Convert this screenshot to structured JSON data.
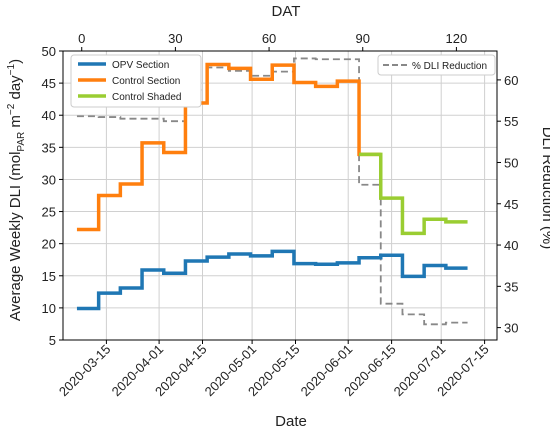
{
  "chart_data": {
    "type": "line",
    "xlabel": "Date",
    "x2label": "DAT",
    "ylabel": "Average Weekly DLI (mol_PAR m^-2 day^-1)",
    "ylabel_parts": [
      "Average Weekly DLI (mol",
      "PAR",
      " m",
      "−2",
      " day",
      "−1",
      ")"
    ],
    "y2label": "DLI Reduction (%)",
    "x_ticks": [
      "2020-03-15",
      "2020-04-01",
      "2020-04-15",
      "2020-05-01",
      "2020-05-15",
      "2020-06-01",
      "2020-06-15",
      "2020-07-01",
      "2020-07-15"
    ],
    "x2_ticks": [
      "0",
      "30",
      "60",
      "90",
      "120"
    ],
    "y_ticks": [
      "5",
      "10",
      "15",
      "20",
      "25",
      "30",
      "35",
      "40",
      "45",
      "50"
    ],
    "y2_ticks": [
      "30",
      "35",
      "40",
      "45",
      "50",
      "55",
      "60"
    ],
    "xlim": [
      "2020-03-01",
      "2020-07-19"
    ],
    "ylim": [
      5,
      50
    ],
    "y2lim": [
      28.5,
      63.5
    ],
    "x2lim": [
      -6,
      133
    ],
    "grid": true,
    "legend_left": {
      "placement": "top-left",
      "entries": [
        "OPV Section",
        "Control Section",
        "Control Shaded"
      ]
    },
    "legend_right": {
      "placement": "top-right",
      "entries": [
        "% DLI Reduction"
      ]
    },
    "colors": {
      "OPV Section": "#1f77b4",
      "Control Section": "#ff7f0e",
      "Control Shaded": "#9acd32",
      "% DLI Reduction": "#888888"
    },
    "series": [
      {
        "name": "OPV Section",
        "axis": "left",
        "style": "steps-mid",
        "dash": false,
        "x": [
          "2020-03-09",
          "2020-03-16",
          "2020-03-23",
          "2020-03-30",
          "2020-04-06",
          "2020-04-13",
          "2020-04-20",
          "2020-04-27",
          "2020-05-04",
          "2020-05-11",
          "2020-05-18",
          "2020-05-25",
          "2020-06-01",
          "2020-06-08",
          "2020-06-15",
          "2020-06-22",
          "2020-06-29",
          "2020-07-06"
        ],
        "values": [
          9.9,
          12.3,
          13.1,
          15.9,
          15.4,
          17.3,
          17.9,
          18.4,
          18.1,
          18.8,
          16.9,
          16.8,
          17.0,
          17.8,
          18.2,
          14.9,
          16.6,
          16.2
        ]
      },
      {
        "name": "Control Section",
        "axis": "left",
        "style": "steps-mid",
        "dash": false,
        "x": [
          "2020-03-09",
          "2020-03-16",
          "2020-03-23",
          "2020-03-30",
          "2020-04-06",
          "2020-04-13",
          "2020-04-20",
          "2020-04-27",
          "2020-05-04",
          "2020-05-11",
          "2020-05-18",
          "2020-05-25",
          "2020-06-01",
          "2020-06-08"
        ],
        "values": [
          22.2,
          27.5,
          29.3,
          35.7,
          34.2,
          41.9,
          47.9,
          47.3,
          45.6,
          47.8,
          45.1,
          44.5,
          45.3,
          33.9
        ]
      },
      {
        "name": "Control Shaded",
        "axis": "left",
        "style": "steps-mid",
        "dash": false,
        "x": [
          "2020-06-08",
          "2020-06-15",
          "2020-06-22",
          "2020-06-29",
          "2020-07-06"
        ],
        "values": [
          33.9,
          27.1,
          21.6,
          23.8,
          23.4
        ]
      },
      {
        "name": "% DLI Reduction",
        "axis": "right",
        "style": "steps-mid",
        "dash": true,
        "x": [
          "2020-03-09",
          "2020-03-16",
          "2020-03-23",
          "2020-03-30",
          "2020-04-06",
          "2020-04-13",
          "2020-04-20",
          "2020-04-27",
          "2020-05-04",
          "2020-05-11",
          "2020-05-18",
          "2020-05-25",
          "2020-06-01",
          "2020-06-08",
          "2020-06-15",
          "2020-06-22",
          "2020-06-29",
          "2020-07-06"
        ],
        "values": [
          55.6,
          55.5,
          55.3,
          55.3,
          55.0,
          58.8,
          61.5,
          61.1,
          60.5,
          61.0,
          62.6,
          62.5,
          62.5,
          47.3,
          32.9,
          31.6,
          30.4,
          30.6
        ]
      }
    ]
  }
}
